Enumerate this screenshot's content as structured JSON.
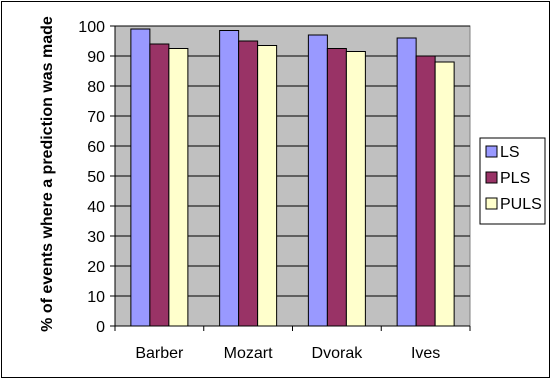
{
  "chart_data": {
    "type": "bar",
    "title": "",
    "xlabel": "",
    "ylabel": "% of events where a prediction was made",
    "categories": [
      "Barber",
      "Mozart",
      "Dvorak",
      "Ives"
    ],
    "series": [
      {
        "name": "LS",
        "values": [
          99,
          98.5,
          97,
          96
        ],
        "color": "#9999FF"
      },
      {
        "name": "PLS",
        "values": [
          94,
          95,
          92.5,
          90
        ],
        "color": "#993366"
      },
      {
        "name": "PULS",
        "values": [
          92.5,
          93.5,
          91.5,
          88
        ],
        "color": "#FFFFCC"
      }
    ],
    "ylim": [
      0,
      100
    ],
    "yticks": [
      0,
      10,
      20,
      30,
      40,
      50,
      60,
      70,
      80,
      90,
      100
    ],
    "grid": "horizontal",
    "legend": "right",
    "plot_background": "#C0C0C0"
  }
}
